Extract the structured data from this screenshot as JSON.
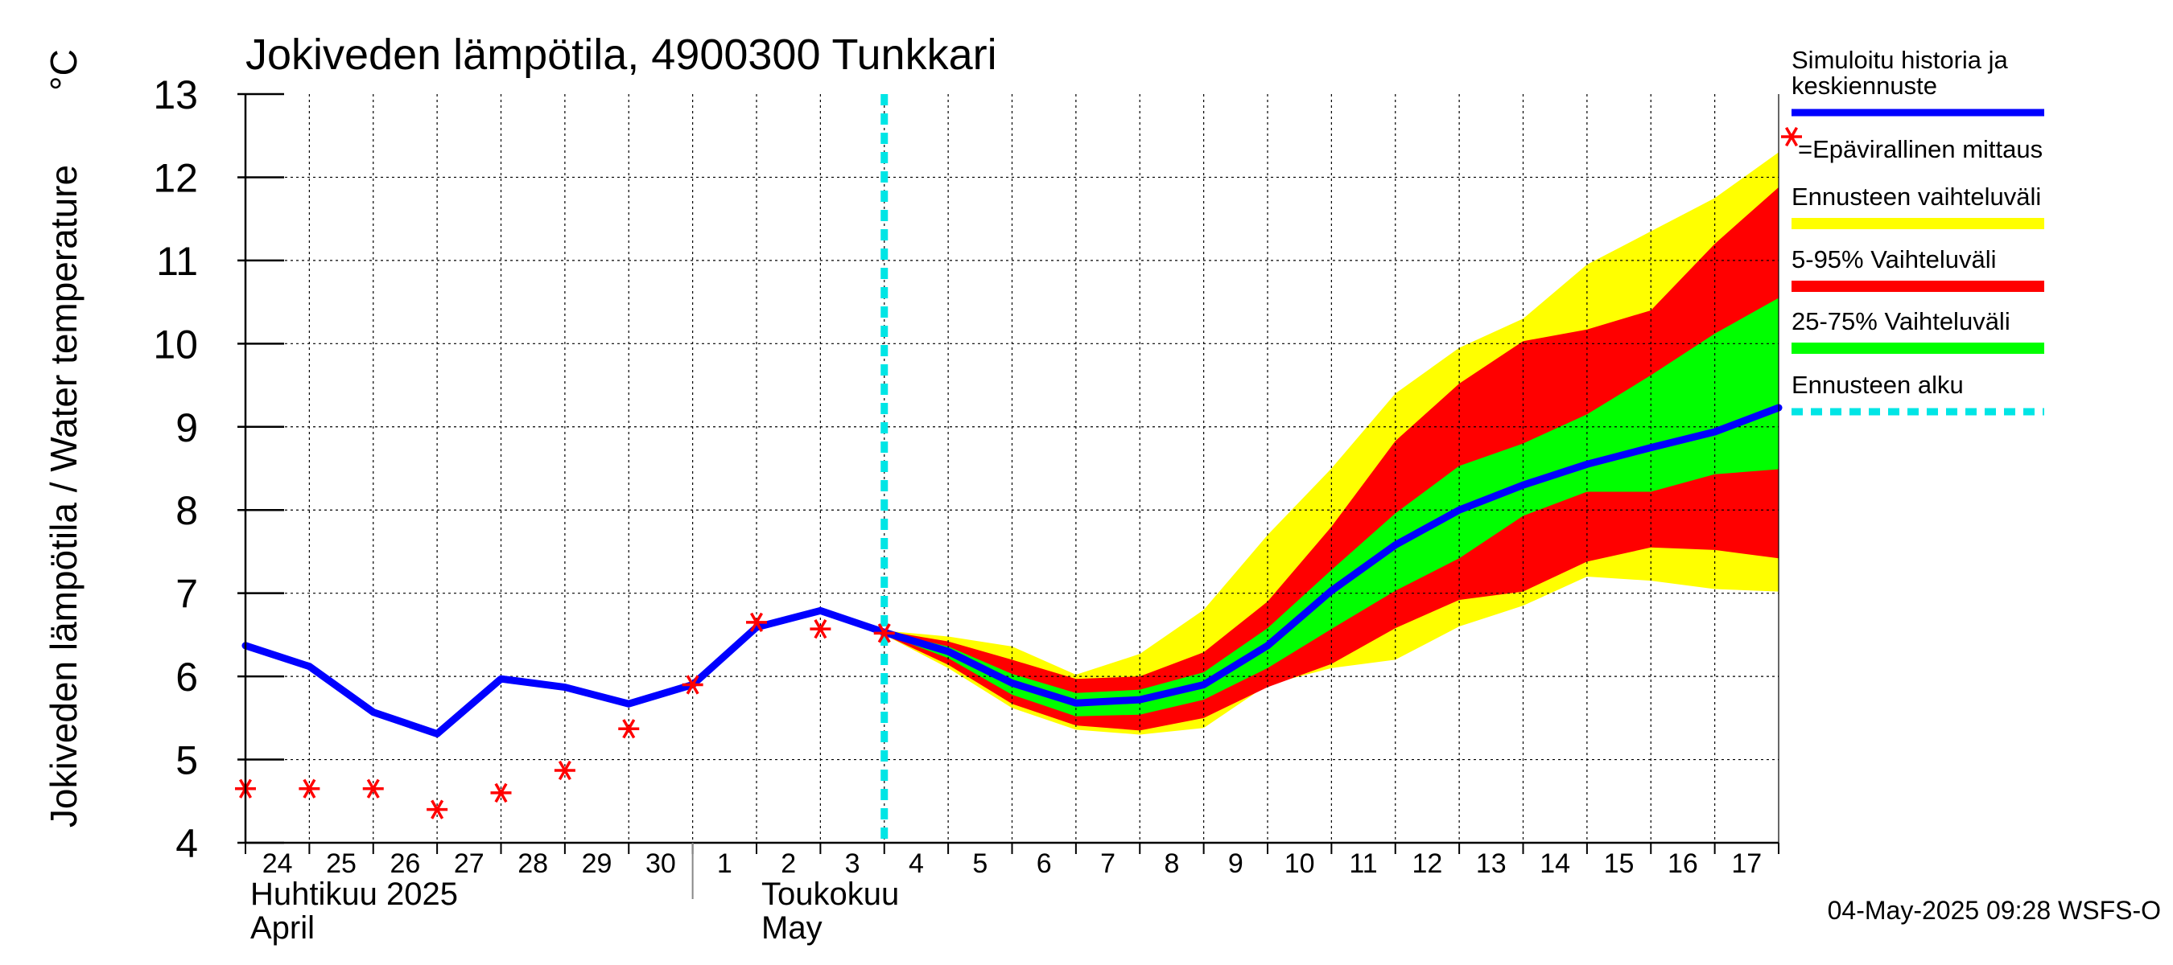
{
  "chart_data": {
    "type": "line",
    "title": "Jokiveden lämpötila, 4900300 Tunkkari",
    "ylabel": "Jokiveden lämpötila / Water temperature",
    "yunit": "°C",
    "ylim": [
      4,
      13
    ],
    "yticks": [
      "4",
      "5",
      "6",
      "7",
      "8",
      "9",
      "10",
      "11",
      "12",
      "13"
    ],
    "x_start": "2025-04-24",
    "x_end": "2025-05-18",
    "grid": true,
    "legend_placement": "right",
    "xtick_labels": [
      {
        "date": "2025-04-24",
        "label": "24"
      },
      {
        "date": "2025-04-25",
        "label": "25"
      },
      {
        "date": "2025-04-26",
        "label": "26"
      },
      {
        "date": "2025-04-27",
        "label": "27"
      },
      {
        "date": "2025-04-28",
        "label": "28"
      },
      {
        "date": "2025-04-29",
        "label": "29"
      },
      {
        "date": "2025-04-30",
        "label": "30"
      },
      {
        "date": "2025-05-01",
        "label": "1"
      },
      {
        "date": "2025-05-02",
        "label": "2"
      },
      {
        "date": "2025-05-03",
        "label": "3"
      },
      {
        "date": "2025-05-04",
        "label": "4"
      },
      {
        "date": "2025-05-05",
        "label": "5"
      },
      {
        "date": "2025-05-06",
        "label": "6"
      },
      {
        "date": "2025-05-07",
        "label": "7"
      },
      {
        "date": "2025-05-08",
        "label": "8"
      },
      {
        "date": "2025-05-09",
        "label": "9"
      },
      {
        "date": "2025-05-10",
        "label": "10"
      },
      {
        "date": "2025-05-11",
        "label": "11"
      },
      {
        "date": "2025-05-12",
        "label": "12"
      },
      {
        "date": "2025-05-13",
        "label": "13"
      },
      {
        "date": "2025-05-14",
        "label": "14"
      },
      {
        "date": "2025-05-15",
        "label": "15"
      },
      {
        "date": "2025-05-16",
        "label": "16"
      },
      {
        "date": "2025-05-17",
        "label": "17"
      }
    ],
    "months": [
      {
        "date": "2025-04-24",
        "fi": "Huhtikuu  2025",
        "en": "April"
      },
      {
        "date": "2025-05-02",
        "fi": "Toukokuu",
        "en": "May"
      }
    ],
    "month_boundary": "2025-05-01",
    "forecast_start": "2025-05-04",
    "series": [
      {
        "name": "Simuloitu historia ja keskiennuste",
        "color": "#0000ff",
        "kind": "line",
        "points": [
          [
            "2025-04-24",
            6.37
          ],
          [
            "2025-04-25",
            6.12
          ],
          [
            "2025-04-26",
            5.57
          ],
          [
            "2025-04-27",
            5.31
          ],
          [
            "2025-04-28",
            5.97
          ],
          [
            "2025-04-29",
            5.87
          ],
          [
            "2025-04-30",
            5.67
          ],
          [
            "2025-05-01",
            5.9
          ],
          [
            "2025-05-02",
            6.59
          ],
          [
            "2025-05-03",
            6.79
          ],
          [
            "2025-05-04",
            6.53
          ],
          [
            "2025-05-05",
            6.3
          ],
          [
            "2025-05-06",
            5.92
          ],
          [
            "2025-05-07",
            5.68
          ],
          [
            "2025-05-08",
            5.72
          ],
          [
            "2025-05-09",
            5.9
          ],
          [
            "2025-05-10",
            6.37
          ],
          [
            "2025-05-11",
            7.03
          ],
          [
            "2025-05-12",
            7.58
          ],
          [
            "2025-05-13",
            8.0
          ],
          [
            "2025-05-14",
            8.3
          ],
          [
            "2025-05-15",
            8.55
          ],
          [
            "2025-05-16",
            8.75
          ],
          [
            "2025-05-17",
            8.94
          ],
          [
            "2025-05-18",
            9.23
          ]
        ]
      },
      {
        "name": "=Epävirallinen mittaus",
        "color": "#ff0000",
        "kind": "marker",
        "points": [
          [
            "2025-04-24",
            4.65
          ],
          [
            "2025-04-25",
            4.65
          ],
          [
            "2025-04-26",
            4.65
          ],
          [
            "2025-04-27",
            4.4
          ],
          [
            "2025-04-28",
            4.6
          ],
          [
            "2025-04-29",
            4.87
          ],
          [
            "2025-04-30",
            5.37
          ],
          [
            "2025-05-01",
            5.9
          ],
          [
            "2025-05-02",
            6.65
          ],
          [
            "2025-05-03",
            6.57
          ],
          [
            "2025-05-04",
            6.52
          ]
        ]
      },
      {
        "name": "Ennusteen vaihteluväli",
        "color": "#ffff00",
        "kind": "band",
        "x": [
          "2025-05-04",
          "2025-05-05",
          "2025-05-06",
          "2025-05-07",
          "2025-05-08",
          "2025-05-09",
          "2025-05-10",
          "2025-05-11",
          "2025-05-12",
          "2025-05-13",
          "2025-05-14",
          "2025-05-15",
          "2025-05-16",
          "2025-05-17",
          "2025-05-18"
        ],
        "upper": [
          6.55,
          6.48,
          6.36,
          6.02,
          6.27,
          6.8,
          7.7,
          8.5,
          9.4,
          9.95,
          10.3,
          10.95,
          11.35,
          11.75,
          12.3
        ],
        "lower": [
          6.5,
          6.1,
          5.62,
          5.36,
          5.3,
          5.38,
          5.9,
          6.1,
          6.2,
          6.6,
          6.85,
          7.2,
          7.15,
          7.05,
          7.02
        ]
      },
      {
        "name": "5-95% Vaihteluväli",
        "color": "#ff0000",
        "kind": "band",
        "x": [
          "2025-05-04",
          "2025-05-05",
          "2025-05-06",
          "2025-05-07",
          "2025-05-08",
          "2025-05-09",
          "2025-05-10",
          "2025-05-11",
          "2025-05-12",
          "2025-05-13",
          "2025-05-14",
          "2025-05-15",
          "2025-05-16",
          "2025-05-17",
          "2025-05-18"
        ],
        "upper": [
          6.55,
          6.42,
          6.2,
          5.97,
          6.0,
          6.29,
          6.9,
          7.8,
          8.83,
          9.52,
          10.03,
          10.17,
          10.4,
          11.2,
          11.88
        ],
        "lower": [
          6.5,
          6.14,
          5.67,
          5.41,
          5.35,
          5.5,
          5.87,
          6.15,
          6.58,
          6.92,
          7.02,
          7.38,
          7.55,
          7.52,
          7.42
        ]
      },
      {
        "name": "25-75% Vaihteluväli",
        "color": "#00ff00",
        "kind": "band",
        "x": [
          "2025-05-04",
          "2025-05-05",
          "2025-05-06",
          "2025-05-07",
          "2025-05-08",
          "2025-05-09",
          "2025-05-10",
          "2025-05-11",
          "2025-05-12",
          "2025-05-13",
          "2025-05-14",
          "2025-05-15",
          "2025-05-16",
          "2025-05-17",
          "2025-05-18"
        ],
        "upper": [
          6.54,
          6.36,
          6.03,
          5.8,
          5.84,
          6.05,
          6.58,
          7.28,
          7.96,
          8.53,
          8.8,
          9.15,
          9.62,
          10.12,
          10.55
        ],
        "lower": [
          6.51,
          6.22,
          5.78,
          5.52,
          5.54,
          5.72,
          6.1,
          6.57,
          7.03,
          7.42,
          7.93,
          8.22,
          8.22,
          8.43,
          8.49
        ]
      }
    ],
    "legend": [
      {
        "label": "Simuloitu historia ja\nkeskiennuste",
        "color": "#0000ff",
        "style": "line"
      },
      {
        "label": "=Epävirallinen mittaus",
        "color": "#ff0000",
        "style": "marker"
      },
      {
        "label": "Ennusteen vaihteluväli",
        "color": "#ffff00",
        "style": "bar"
      },
      {
        "label": "5-95% Vaihteluväli",
        "color": "#ff0000",
        "style": "bar"
      },
      {
        "label": "25-75% Vaihteluväli",
        "color": "#00ff00",
        "style": "bar"
      },
      {
        "label": "Ennusteen alku",
        "color": "#00e5e5",
        "style": "dashed"
      }
    ]
  },
  "timestamp": "04-May-2025 09:28 WSFS-O"
}
